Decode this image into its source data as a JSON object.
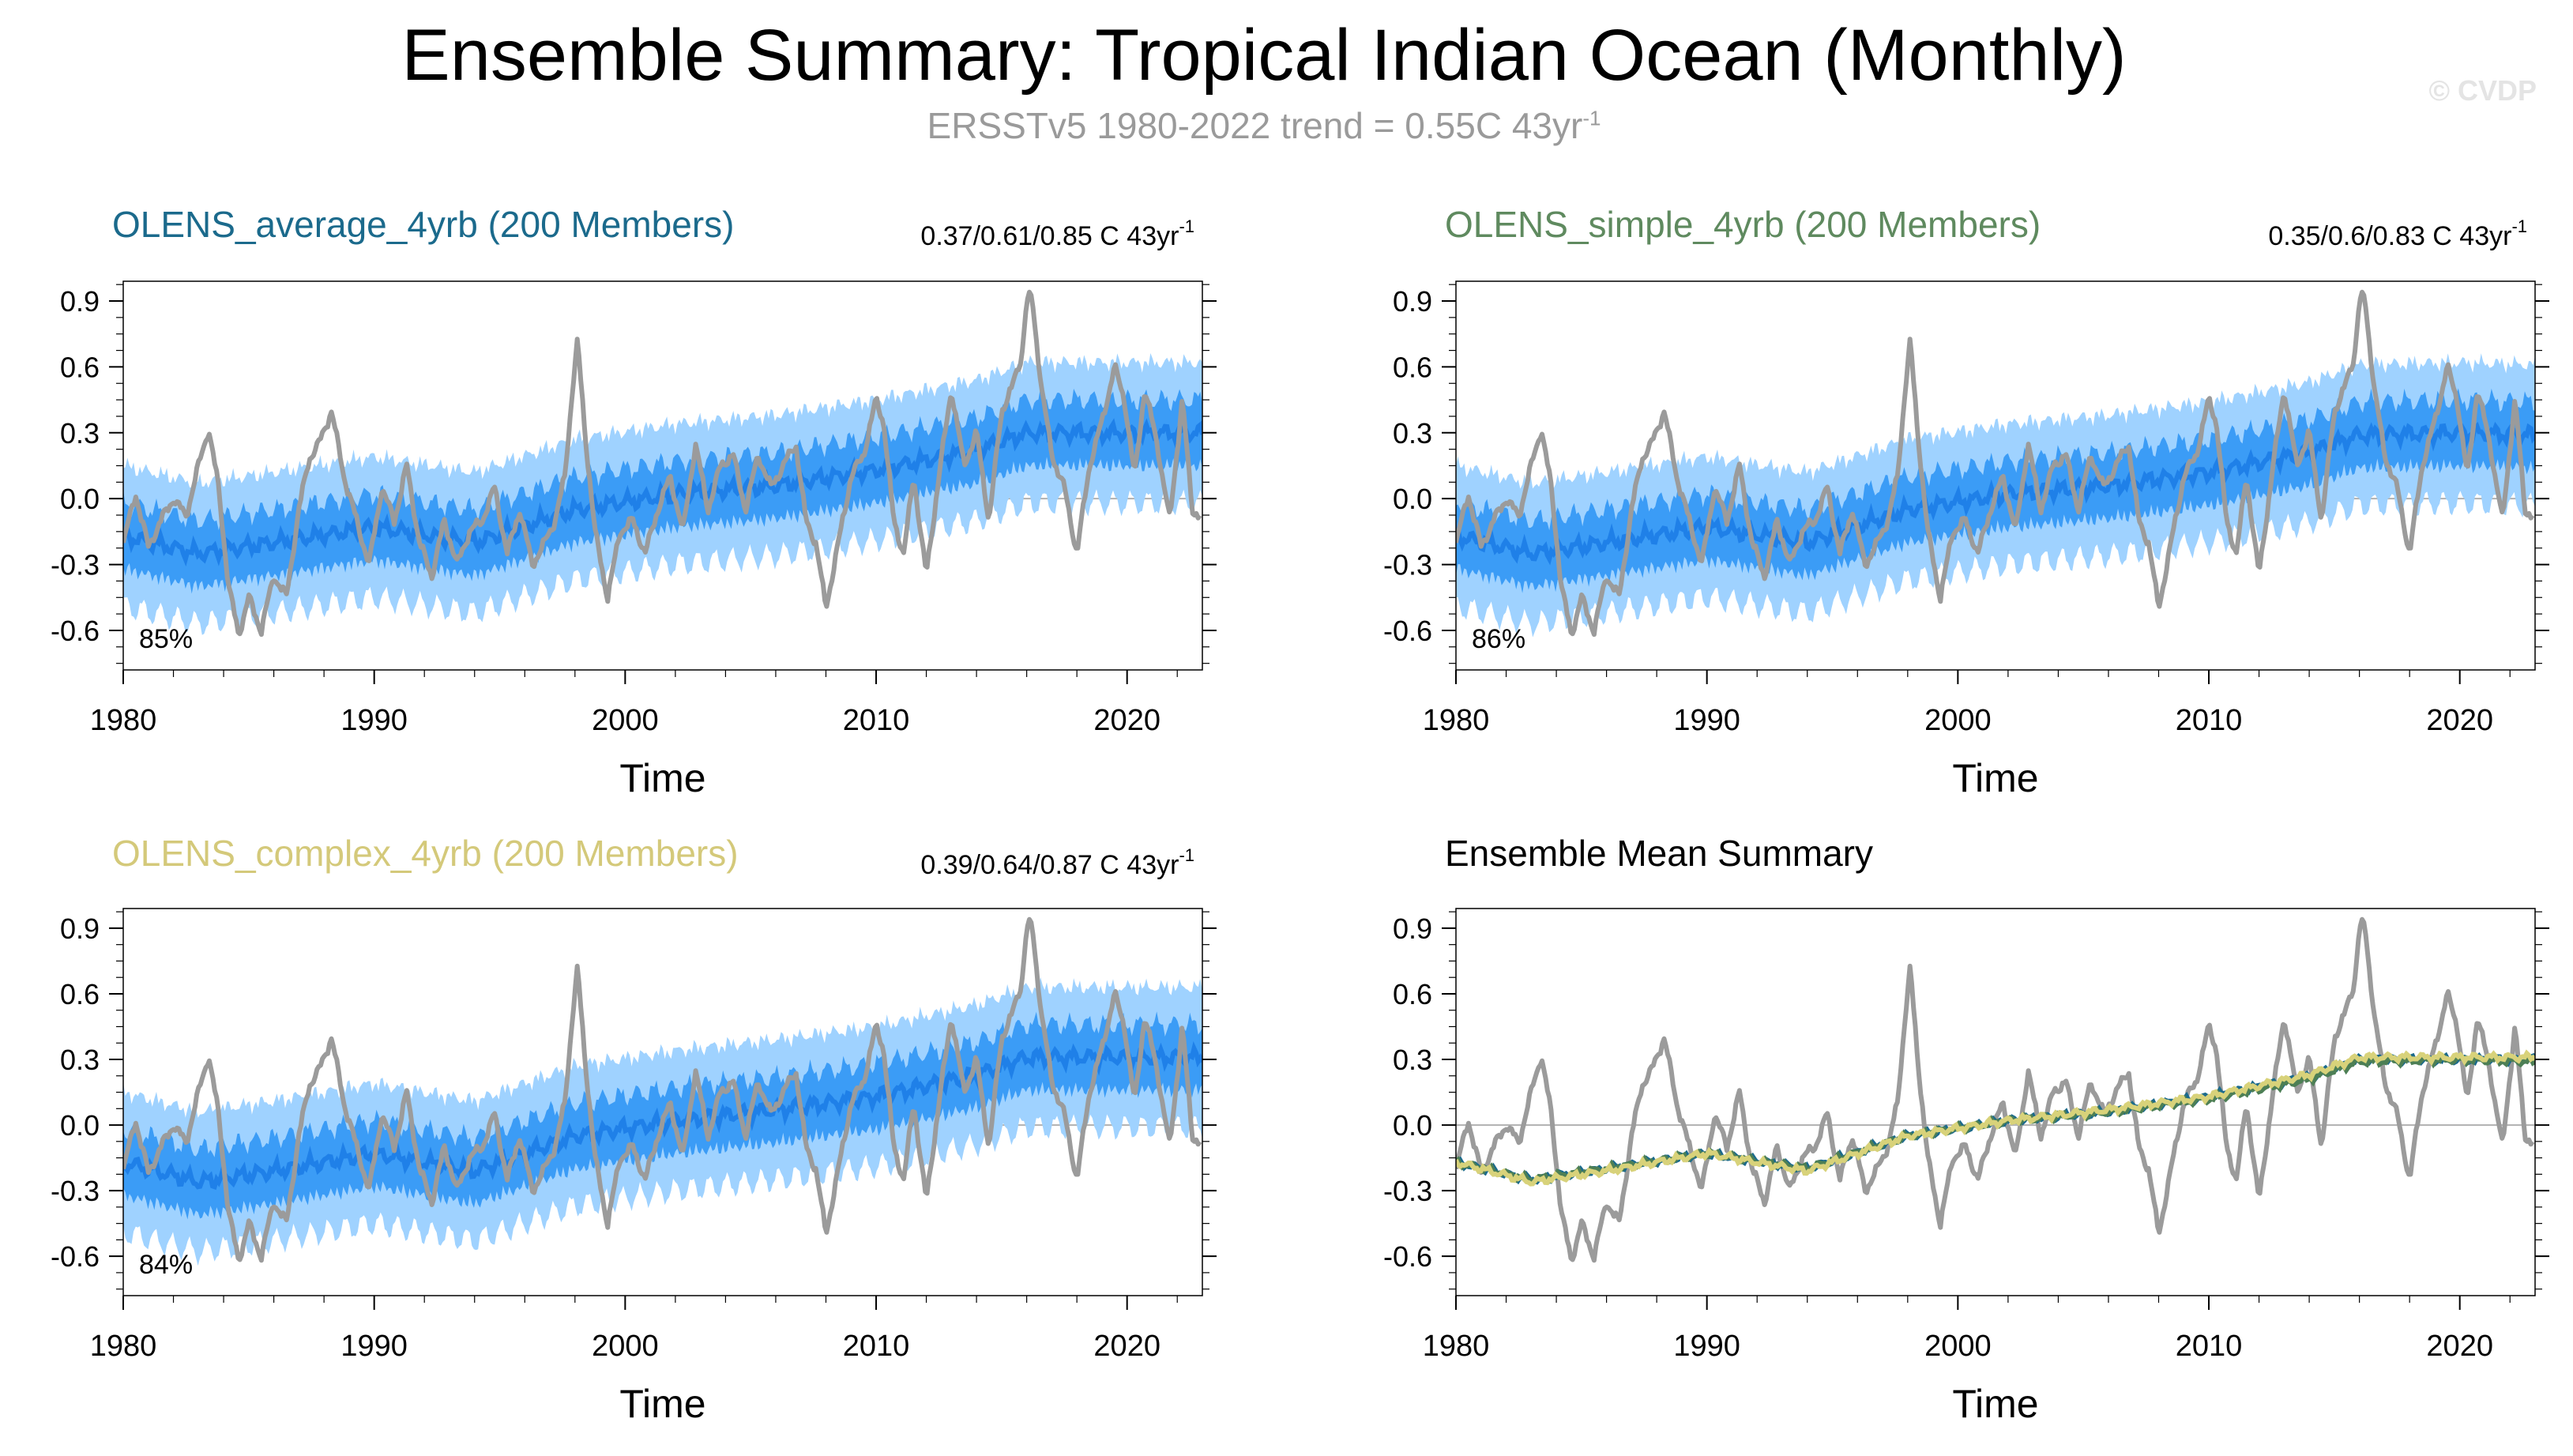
{
  "title": "Ensemble Summary: Tropical Indian Ocean (Monthly)",
  "subtitle_main": "ERSSTv5 1980-2022 trend = 0.55C 43yr",
  "subtitle_sup": "-1",
  "watermark": "© CVDP",
  "colors": {
    "obs": "#9b9b9b",
    "band_outer": "#9fd2ff",
    "band_inner": "#3b9cf6",
    "ens_mean": "#1f80e8",
    "title_average": "#1b6a8c",
    "title_simple": "#5f8a5f",
    "title_complex": "#d4c97a",
    "summary_average": "#1b6a8c",
    "summary_simple": "#4d7f55",
    "summary_complex": "#d8d27a"
  },
  "chart_data": [
    {
      "type": "line",
      "panel": "average",
      "title": "OLENS_average_4yrb (200 Members)",
      "trend_text": "0.37/0.61/0.85 C 43yr",
      "trend_sup": "-1",
      "percent": "85%",
      "xlabel": "Time",
      "ylabel": "",
      "xlim": [
        1980,
        2023
      ],
      "ylim": [
        -0.78,
        0.99
      ],
      "xticks": [
        "1980",
        "1990",
        "2000",
        "2010",
        "2020"
      ],
      "yticks": [
        "0.9",
        "0.6",
        "0.3",
        "0.0",
        "-0.3",
        "-0.6"
      ],
      "series": [
        {
          "name": "ERSSTv5 observed",
          "values_ref": "obs"
        },
        {
          "name": "ensemble mean",
          "x": [
            1980,
            1983,
            1986,
            1990,
            1994,
            1998,
            2002,
            2006,
            2010,
            2014,
            2016,
            2020,
            2023
          ],
          "y": [
            -0.17,
            -0.25,
            -0.2,
            -0.13,
            -0.2,
            -0.05,
            0.02,
            0.06,
            0.13,
            0.22,
            0.3,
            0.3,
            0.3
          ]
        },
        {
          "name": "10-90% range",
          "halfwidth": 0.15
        },
        {
          "name": "min-max range",
          "halfwidth": 0.32
        }
      ]
    },
    {
      "type": "line",
      "panel": "simple",
      "title": "OLENS_simple_4yrb (200 Members)",
      "trend_text": "0.35/0.6/0.83 C 43yr",
      "trend_sup": "-1",
      "percent": "86%",
      "xlabel": "Time",
      "ylabel": "",
      "xlim": [
        1980,
        2023
      ],
      "ylim": [
        -0.78,
        0.99
      ],
      "xticks": [
        "1980",
        "1990",
        "2000",
        "2010",
        "2020"
      ],
      "yticks": [
        "0.9",
        "0.6",
        "0.3",
        "0.0",
        "-0.3",
        "-0.6"
      ],
      "series": [
        {
          "name": "ERSSTv5 observed",
          "values_ref": "obs"
        },
        {
          "name": "ensemble mean",
          "x": [
            1980,
            1983,
            1986,
            1990,
            1994,
            1998,
            2002,
            2006,
            2010,
            2014,
            2016,
            2020,
            2023
          ],
          "y": [
            -0.17,
            -0.25,
            -0.2,
            -0.13,
            -0.2,
            -0.05,
            0.02,
            0.06,
            0.12,
            0.21,
            0.29,
            0.3,
            0.29
          ]
        },
        {
          "name": "10-90% range",
          "halfwidth": 0.15
        },
        {
          "name": "min-max range",
          "halfwidth": 0.32
        }
      ]
    },
    {
      "type": "line",
      "panel": "complex",
      "title": "OLENS_complex_4yrb (200 Members)",
      "trend_text": "0.39/0.64/0.87 C 43yr",
      "trend_sup": "-1",
      "percent": "84%",
      "xlabel": "Time",
      "ylabel": "",
      "xlim": [
        1980,
        2023
      ],
      "ylim": [
        -0.78,
        0.99
      ],
      "xticks": [
        "1980",
        "1990",
        "2000",
        "2010",
        "2020"
      ],
      "yticks": [
        "0.9",
        "0.6",
        "0.3",
        "0.0",
        "-0.3",
        "-0.6"
      ],
      "series": [
        {
          "name": "ERSSTv5 observed",
          "values_ref": "obs"
        },
        {
          "name": "ensemble mean",
          "x": [
            1980,
            1983,
            1986,
            1990,
            1994,
            1998,
            2002,
            2006,
            2010,
            2014,
            2016,
            2020,
            2023
          ],
          "y": [
            -0.17,
            -0.26,
            -0.21,
            -0.13,
            -0.21,
            -0.05,
            0.02,
            0.07,
            0.13,
            0.23,
            0.31,
            0.31,
            0.31
          ]
        },
        {
          "name": "10-90% range",
          "halfwidth": 0.15
        },
        {
          "name": "min-max range",
          "halfwidth": 0.32
        }
      ]
    },
    {
      "type": "line",
      "panel": "summary",
      "title": "Ensemble Mean Summary",
      "trend_text": "",
      "trend_sup": "",
      "percent": "",
      "xlabel": "Time",
      "ylabel": "",
      "xlim": [
        1980,
        2023
      ],
      "ylim": [
        -0.78,
        0.99
      ],
      "xticks": [
        "1980",
        "1990",
        "2000",
        "2010",
        "2020"
      ],
      "yticks": [
        "0.9",
        "0.6",
        "0.3",
        "0.0",
        "-0.3",
        "-0.6"
      ],
      "series": [
        {
          "name": "ERSSTv5 observed",
          "values_ref": "obs"
        },
        {
          "name": "OLENS_average_4yrb mean"
        },
        {
          "name": "OLENS_simple_4yrb mean"
        },
        {
          "name": "OLENS_complex_4yrb mean"
        }
      ]
    }
  ],
  "obs": {
    "x": [
      1980.0,
      1980.5,
      1981.0,
      1981.5,
      1982.0,
      1982.5,
      1983.0,
      1983.4,
      1983.8,
      1984.2,
      1984.6,
      1985.0,
      1985.5,
      1986.0,
      1986.5,
      1987.0,
      1987.4,
      1987.8,
      1988.3,
      1988.8,
      1989.3,
      1989.8,
      1990.3,
      1990.8,
      1991.3,
      1991.8,
      1992.3,
      1992.8,
      1993.3,
      1993.8,
      1994.3,
      1994.8,
      1995.3,
      1995.8,
      1996.3,
      1996.8,
      1997.2,
      1997.6,
      1997.9,
      1998.1,
      1998.4,
      1998.8,
      1999.3,
      1999.8,
      2000.3,
      2000.8,
      2001.3,
      2001.8,
      2002.3,
      2002.8,
      2003.3,
      2003.8,
      2004.3,
      2004.8,
      2005.3,
      2005.8,
      2006.3,
      2006.8,
      2007.2,
      2007.6,
      2008.0,
      2008.5,
      2009.0,
      2009.5,
      2010.0,
      2010.3,
      2010.7,
      2011.1,
      2011.5,
      2012.0,
      2012.5,
      2013.0,
      2013.5,
      2014.0,
      2014.5,
      2015.0,
      2015.4,
      2015.8,
      2016.0,
      2016.2,
      2016.6,
      2017.0,
      2017.5,
      2018.0,
      2018.5,
      2019.0,
      2019.5,
      2019.9,
      2020.3,
      2020.7,
      2021.2,
      2021.7,
      2022.2,
      2022.6,
      2022.9
    ],
    "y": [
      -0.2,
      0.02,
      -0.22,
      -0.1,
      0.0,
      -0.08,
      0.15,
      0.32,
      0.05,
      -0.4,
      -0.62,
      -0.45,
      -0.6,
      -0.35,
      -0.45,
      -0.05,
      0.18,
      0.25,
      0.4,
      0.1,
      -0.1,
      -0.3,
      0.05,
      -0.1,
      0.15,
      -0.2,
      -0.35,
      -0.1,
      -0.3,
      -0.15,
      -0.1,
      0.05,
      -0.25,
      -0.05,
      -0.3,
      -0.2,
      -0.1,
      0.1,
      0.5,
      0.72,
      0.3,
      -0.15,
      -0.45,
      -0.15,
      -0.1,
      -0.25,
      -0.05,
      0.1,
      -0.15,
      0.25,
      -0.05,
      0.15,
      0.2,
      -0.05,
      0.2,
      0.05,
      0.15,
      0.25,
      -0.1,
      -0.2,
      -0.5,
      -0.2,
      0.1,
      0.2,
      0.45,
      0.35,
      -0.1,
      -0.25,
      0.1,
      -0.35,
      0.1,
      0.5,
      0.15,
      0.3,
      -0.1,
      0.4,
      0.5,
      0.65,
      0.9,
      0.92,
      0.5,
      0.2,
      0.05,
      -0.25,
      0.15,
      0.35,
      0.6,
      0.45,
      0.1,
      0.5,
      0.25,
      -0.1,
      0.45,
      -0.05,
      -0.08
    ]
  },
  "axes_labels": {
    "time": "Time"
  }
}
